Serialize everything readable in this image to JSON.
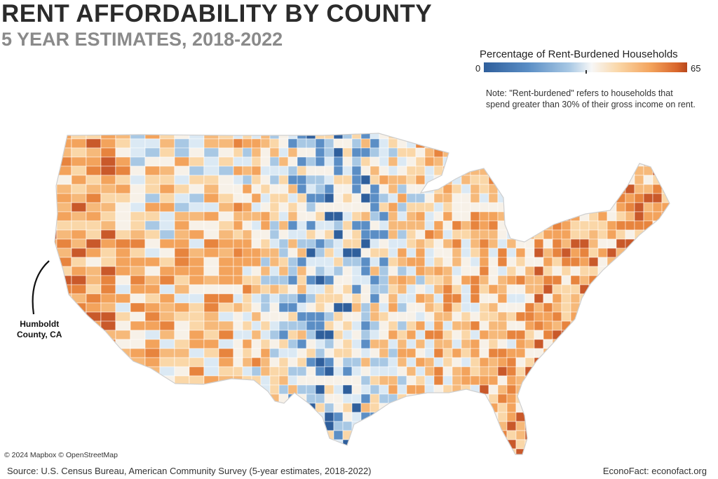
{
  "header": {
    "title": "RENT AFFORDABILITY BY COUNTY",
    "subtitle": "5 YEAR ESTIMATES, 2018-2022"
  },
  "legend": {
    "title": "Percentage of Rent-Burdened Households",
    "min_label": "0",
    "max_label": "65",
    "colors": [
      "#2f5f9c",
      "#a8c8e4",
      "#f7f7f7",
      "#f3a35c",
      "#b7471d"
    ]
  },
  "note": {
    "text": "Note: \"Rent-burdened\" refers to households that spend greater than 30% of their gross income on rent."
  },
  "callout": {
    "line1": "Humboldt",
    "line2": "County, CA"
  },
  "footer": {
    "map_credit": "© 2024 Mapbox © OpenStreetMap",
    "source": "Source: U.S. Census Bureau, American Community Survey (5-year estimates, 2018-2022)",
    "brand": "EconoFact: econofact.org"
  }
}
